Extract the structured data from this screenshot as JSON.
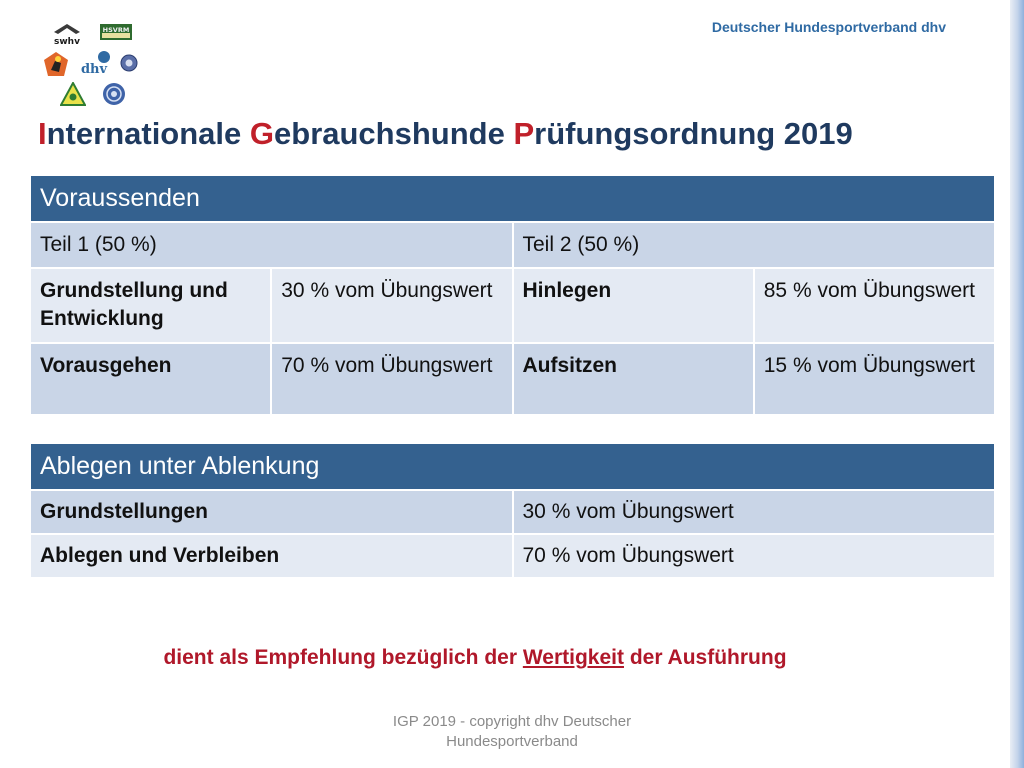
{
  "header": {
    "organization": "Deutscher Hundesportverband dhv",
    "logos": {
      "swhv": "swhv",
      "hsvrm": "HSVRM",
      "dhv": "dhv",
      "dhv_small": "dhv"
    }
  },
  "title": {
    "letter1": "I",
    "rest1": "nternationale ",
    "letter2": "G",
    "rest2": "ebrauchshunde ",
    "letter3": "P",
    "rest3": "rüfungsordnung 2019"
  },
  "table1": {
    "header": "Voraussenden",
    "part1": "Teil 1 (50 %)",
    "part2": "Teil 2 (50 %)",
    "rows": [
      {
        "ex1": "Grundstellung und Entwicklung",
        "val1": "30 % vom Übungswert",
        "ex2": "Hinlegen",
        "val2": "85 % vom Übungswert"
      },
      {
        "ex1": "Vorausgehen",
        "val1": "70 % vom Übungswert",
        "ex2": "Aufsitzen",
        "val2": "15 % vom Übungswert"
      }
    ]
  },
  "table2": {
    "header": "Ablegen unter Ablenkung",
    "rows": [
      {
        "label": "Grundstellungen",
        "value": "30 % vom Übungswert"
      },
      {
        "label": "Ablegen und Verbleiben",
        "value": "70 % vom Übungswert"
      }
    ]
  },
  "note": {
    "before": "dient als Empfehlung bezüglich der ",
    "underlined": "Wertigkeit",
    "after": " der Ausführung"
  },
  "footer": {
    "line1": "IGP 2019 -  copyright dhv Deutscher",
    "line2": "Hundesportverband"
  },
  "colors": {
    "table_header_bg": "#34618f",
    "row_dark": "#c9d5e7",
    "row_light": "#e4eaf3",
    "accent_red": "#c0202a",
    "title_blue": "#1f3a5f"
  }
}
